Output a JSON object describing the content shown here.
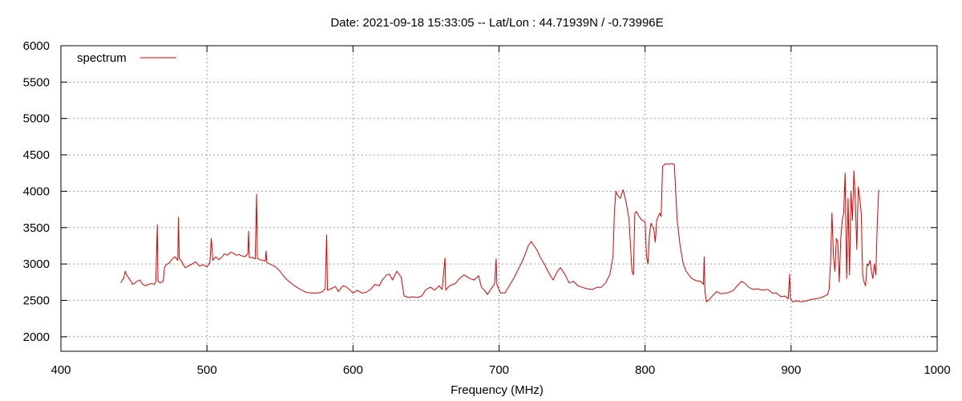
{
  "chart_data": {
    "type": "line",
    "title": "Date: 2021-09-18 15:33:05  --  Lat/Lon : 44.71939N / -0.73996E",
    "xlabel": "Frequency (MHz)",
    "ylabel": "",
    "xlim": [
      400,
      1000
    ],
    "ylim": [
      1800,
      6000
    ],
    "xticks": [
      400,
      500,
      600,
      700,
      800,
      900,
      1000
    ],
    "yticks": [
      2000,
      2500,
      3000,
      3500,
      4000,
      4500,
      5000,
      5500,
      6000
    ],
    "grid": true,
    "legend": "top-left",
    "series": [
      {
        "name": "spectrum",
        "color": "#e00000",
        "points": [
          [
            441,
            2740
          ],
          [
            442,
            2780
          ],
          [
            443,
            2800
          ],
          [
            444,
            2900
          ],
          [
            445,
            2850
          ],
          [
            446,
            2820
          ],
          [
            447,
            2790
          ],
          [
            448,
            2760
          ],
          [
            449,
            2720
          ],
          [
            450,
            2730
          ],
          [
            452,
            2760
          ],
          [
            454,
            2780
          ],
          [
            455,
            2750
          ],
          [
            456,
            2720
          ],
          [
            458,
            2700
          ],
          [
            460,
            2720
          ],
          [
            462,
            2730
          ],
          [
            464,
            2720
          ],
          [
            465,
            2760
          ],
          [
            466,
            3540
          ],
          [
            466.5,
            2760
          ],
          [
            468,
            2740
          ],
          [
            470,
            2760
          ],
          [
            471,
            2950
          ],
          [
            472,
            2990
          ],
          [
            474,
            3010
          ],
          [
            476,
            3060
          ],
          [
            478,
            3100
          ],
          [
            480,
            3050
          ],
          [
            480.5,
            3640
          ],
          [
            481,
            3080
          ],
          [
            483,
            3020
          ],
          [
            485,
            2950
          ],
          [
            488,
            2980
          ],
          [
            490,
            3000
          ],
          [
            492,
            3030
          ],
          [
            495,
            2970
          ],
          [
            497,
            2990
          ],
          [
            500,
            2960
          ],
          [
            502,
            3020
          ],
          [
            503,
            3350
          ],
          [
            504,
            3050
          ],
          [
            506,
            3100
          ],
          [
            508,
            3060
          ],
          [
            510,
            3090
          ],
          [
            512,
            3140
          ],
          [
            514,
            3120
          ],
          [
            516,
            3160
          ],
          [
            518,
            3150
          ],
          [
            520,
            3120
          ],
          [
            522,
            3130
          ],
          [
            524,
            3110
          ],
          [
            526,
            3100
          ],
          [
            528,
            3140
          ],
          [
            528.5,
            3450
          ],
          [
            529,
            3090
          ],
          [
            531,
            3090
          ],
          [
            533,
            3070
          ],
          [
            534,
            3960
          ],
          [
            534.5,
            3080
          ],
          [
            536,
            3060
          ],
          [
            538,
            3050
          ],
          [
            540,
            3040
          ],
          [
            540.5,
            3180
          ],
          [
            541,
            3020
          ],
          [
            544,
            2990
          ],
          [
            547,
            2960
          ],
          [
            550,
            2900
          ],
          [
            553,
            2820
          ],
          [
            556,
            2760
          ],
          [
            560,
            2700
          ],
          [
            564,
            2650
          ],
          [
            568,
            2610
          ],
          [
            572,
            2600
          ],
          [
            576,
            2600
          ],
          [
            579,
            2620
          ],
          [
            581,
            2660
          ],
          [
            582,
            3400
          ],
          [
            582.5,
            2640
          ],
          [
            585,
            2660
          ],
          [
            588,
            2690
          ],
          [
            590,
            2620
          ],
          [
            593,
            2700
          ],
          [
            595,
            2690
          ],
          [
            598,
            2640
          ],
          [
            600,
            2600
          ],
          [
            603,
            2640
          ],
          [
            606,
            2600
          ],
          [
            609,
            2610
          ],
          [
            612,
            2650
          ],
          [
            615,
            2720
          ],
          [
            618,
            2700
          ],
          [
            620,
            2780
          ],
          [
            623,
            2850
          ],
          [
            625,
            2860
          ],
          [
            627,
            2780
          ],
          [
            630,
            2900
          ],
          [
            633,
            2820
          ],
          [
            635,
            2560
          ],
          [
            638,
            2540
          ],
          [
            641,
            2550
          ],
          [
            644,
            2540
          ],
          [
            647,
            2560
          ],
          [
            650,
            2650
          ],
          [
            653,
            2680
          ],
          [
            656,
            2640
          ],
          [
            659,
            2700
          ],
          [
            661,
            2650
          ],
          [
            663,
            3080
          ],
          [
            663.5,
            2640
          ],
          [
            666,
            2700
          ],
          [
            670,
            2730
          ],
          [
            673,
            2800
          ],
          [
            676,
            2850
          ],
          [
            680,
            2800
          ],
          [
            683,
            2780
          ],
          [
            686,
            2840
          ],
          [
            688,
            2680
          ],
          [
            690,
            2640
          ],
          [
            692,
            2580
          ],
          [
            694,
            2640
          ],
          [
            697,
            2730
          ],
          [
            698,
            3070
          ],
          [
            698.5,
            2720
          ],
          [
            701,
            2600
          ],
          [
            704,
            2600
          ],
          [
            707,
            2700
          ],
          [
            710,
            2800
          ],
          [
            713,
            2920
          ],
          [
            716,
            3040
          ],
          [
            718,
            3140
          ],
          [
            720,
            3250
          ],
          [
            722,
            3310
          ],
          [
            724,
            3250
          ],
          [
            726,
            3190
          ],
          [
            728,
            3100
          ],
          [
            731,
            3000
          ],
          [
            734,
            2880
          ],
          [
            737,
            2780
          ],
          [
            740,
            2900
          ],
          [
            742,
            2950
          ],
          [
            745,
            2860
          ],
          [
            748,
            2740
          ],
          [
            751,
            2760
          ],
          [
            754,
            2700
          ],
          [
            757,
            2680
          ],
          [
            760,
            2660
          ],
          [
            764,
            2650
          ],
          [
            767,
            2680
          ],
          [
            770,
            2680
          ],
          [
            773,
            2740
          ],
          [
            776,
            2860
          ],
          [
            778,
            3100
          ],
          [
            779,
            3700
          ],
          [
            780,
            4000
          ],
          [
            781,
            3950
          ],
          [
            783,
            3900
          ],
          [
            785,
            4020
          ],
          [
            787,
            3850
          ],
          [
            789,
            3620
          ],
          [
            790,
            3250
          ],
          [
            791,
            2900
          ],
          [
            792,
            2850
          ],
          [
            793,
            3700
          ],
          [
            794,
            3720
          ],
          [
            796,
            3650
          ],
          [
            798,
            3600
          ],
          [
            800,
            3580
          ],
          [
            801,
            3100
          ],
          [
            802,
            3000
          ],
          [
            803,
            3400
          ],
          [
            804,
            3560
          ],
          [
            806,
            3480
          ],
          [
            807,
            3300
          ],
          [
            808,
            3600
          ],
          [
            810,
            3700
          ],
          [
            811,
            3650
          ],
          [
            812,
            4340
          ],
          [
            814,
            4380
          ],
          [
            816,
            4370
          ],
          [
            818,
            4380
          ],
          [
            820,
            4370
          ],
          [
            821,
            4000
          ],
          [
            822,
            3600
          ],
          [
            824,
            3250
          ],
          [
            826,
            3020
          ],
          [
            828,
            2900
          ],
          [
            830,
            2850
          ],
          [
            832,
            2800
          ],
          [
            835,
            2770
          ],
          [
            838,
            2760
          ],
          [
            840,
            2720
          ],
          [
            840.5,
            3100
          ],
          [
            841,
            2620
          ],
          [
            842,
            2480
          ],
          [
            844,
            2510
          ],
          [
            846,
            2560
          ],
          [
            849,
            2620
          ],
          [
            852,
            2590
          ],
          [
            856,
            2600
          ],
          [
            860,
            2630
          ],
          [
            864,
            2720
          ],
          [
            866,
            2760
          ],
          [
            868,
            2740
          ],
          [
            871,
            2680
          ],
          [
            874,
            2650
          ],
          [
            877,
            2660
          ],
          [
            880,
            2640
          ],
          [
            884,
            2650
          ],
          [
            887,
            2600
          ],
          [
            890,
            2600
          ],
          [
            893,
            2550
          ],
          [
            896,
            2560
          ],
          [
            898,
            2520
          ],
          [
            899,
            2860
          ],
          [
            899.5,
            2530
          ],
          [
            901,
            2480
          ],
          [
            904,
            2490
          ],
          [
            907,
            2480
          ],
          [
            910,
            2490
          ],
          [
            913,
            2510
          ],
          [
            916,
            2520
          ],
          [
            919,
            2530
          ],
          [
            922,
            2550
          ],
          [
            925,
            2580
          ],
          [
            926,
            2650
          ],
          [
            927,
            3000
          ],
          [
            928,
            3700
          ],
          [
            929,
            3100
          ],
          [
            930,
            2900
          ],
          [
            931,
            3350
          ],
          [
            932,
            3300
          ],
          [
            933,
            2750
          ],
          [
            934,
            3350
          ],
          [
            935,
            3600
          ],
          [
            936,
            3700
          ],
          [
            937,
            4250
          ],
          [
            938,
            2800
          ],
          [
            939,
            3900
          ],
          [
            940,
            2850
          ],
          [
            941,
            4000
          ],
          [
            942,
            3600
          ],
          [
            943,
            4280
          ],
          [
            944,
            3850
          ],
          [
            945,
            3200
          ],
          [
            946,
            4060
          ],
          [
            947,
            3900
          ],
          [
            948,
            3700
          ],
          [
            949,
            2850
          ],
          [
            950,
            2750
          ],
          [
            951,
            2700
          ],
          [
            952,
            3000
          ],
          [
            953,
            2980
          ],
          [
            954,
            3050
          ],
          [
            955,
            2900
          ],
          [
            956,
            2800
          ],
          [
            957,
            3000
          ],
          [
            958,
            2850
          ],
          [
            959,
            3550
          ],
          [
            960,
            4020
          ]
        ]
      }
    ]
  }
}
